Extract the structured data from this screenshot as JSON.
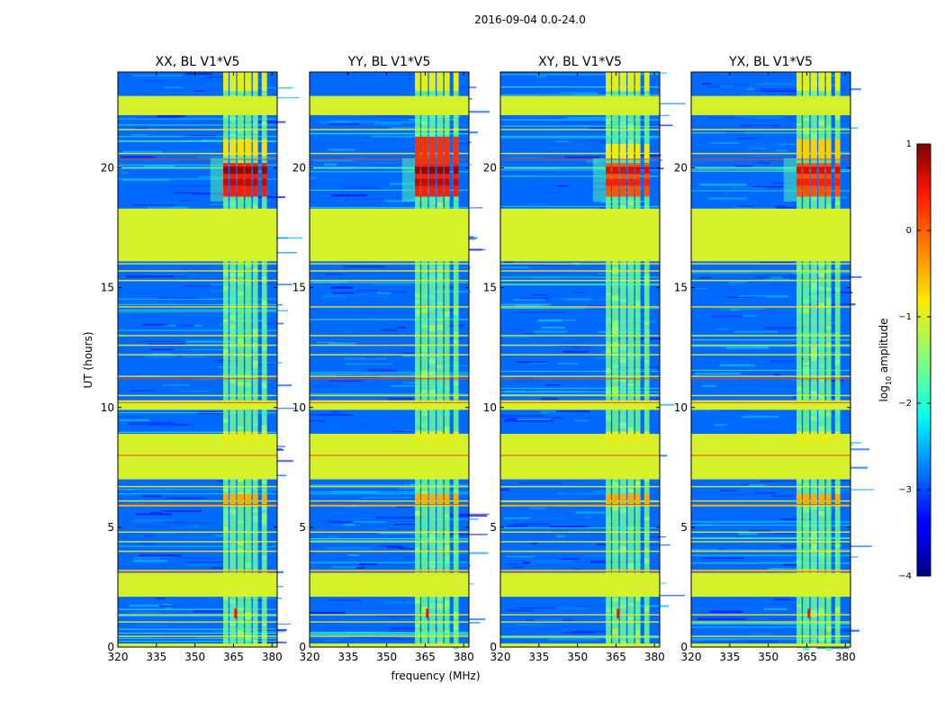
{
  "figure": {
    "suptitle": "2016-09-04 0.0-24.0"
  },
  "chart_data": {
    "type": "heatmap",
    "title": "2016-09-04 0.0-24.0",
    "xlabel": "frequency (MHz)",
    "ylabel": "UT (hours)",
    "xlim": [
      320,
      382
    ],
    "ylim": [
      0,
      24
    ],
    "xticks": [
      320,
      335,
      350,
      365,
      380
    ],
    "yticks": [
      0,
      5,
      10,
      15,
      20
    ],
    "panels": [
      {
        "title": "XX, BL V1*V5",
        "pol": "XX",
        "strong_band_hours": [
          18.8,
          20.2
        ],
        "strong_band_level": 0.9,
        "upper_band_hours": [
          20.5,
          21.2
        ],
        "upper_band_level": -0.7
      },
      {
        "title": "YY, BL V1*V5",
        "pol": "YY",
        "strong_band_hours": [
          18.8,
          20.2
        ],
        "strong_band_level": 0.9,
        "upper_band_hours": [
          20.2,
          21.3
        ],
        "upper_band_level": 0.3
      },
      {
        "title": "XY, BL V1*V5",
        "pol": "XY",
        "strong_band_hours": [
          18.8,
          20.2
        ],
        "strong_band_level": 0.6,
        "upper_band_hours": [
          20.4,
          21.0
        ],
        "upper_band_level": -0.8
      },
      {
        "title": "YX, BL V1*V5",
        "pol": "YX",
        "strong_band_hours": [
          18.8,
          20.2
        ],
        "strong_band_level": 0.6,
        "upper_band_hours": [
          20.4,
          21.2
        ],
        "upper_band_level": -0.6
      }
    ],
    "background_level": -2.9,
    "flagged_level": -1.0,
    "flagged_hours": [
      [
        22.2,
        23.0
      ],
      [
        16.1,
        18.3
      ],
      [
        8.0,
        8.9
      ],
      [
        9.9,
        10.3
      ],
      [
        7.0,
        8.0
      ],
      [
        2.1,
        3.1
      ],
      [
        0.0,
        0.15
      ]
    ],
    "rfi_channels_mhz": [
      [
        361,
        363
      ],
      [
        363.5,
        366
      ],
      [
        366.5,
        369
      ],
      [
        369.5,
        372
      ],
      [
        372.5,
        374.5
      ],
      [
        376,
        378
      ]
    ],
    "rfi_level": -1.6,
    "rfi_block_level": -0.9,
    "colorbar": {
      "label": "log10 amplitude",
      "label_base": "log",
      "label_sub": "10",
      "label_rest": " amplitude",
      "ticks": [
        1,
        0,
        -1,
        -2,
        -3,
        -4
      ],
      "tick_labels": [
        "1",
        "0",
        "−1",
        "−2",
        "−3",
        "−4"
      ],
      "range": [
        -4,
        1
      ],
      "colormap": "jet"
    }
  }
}
